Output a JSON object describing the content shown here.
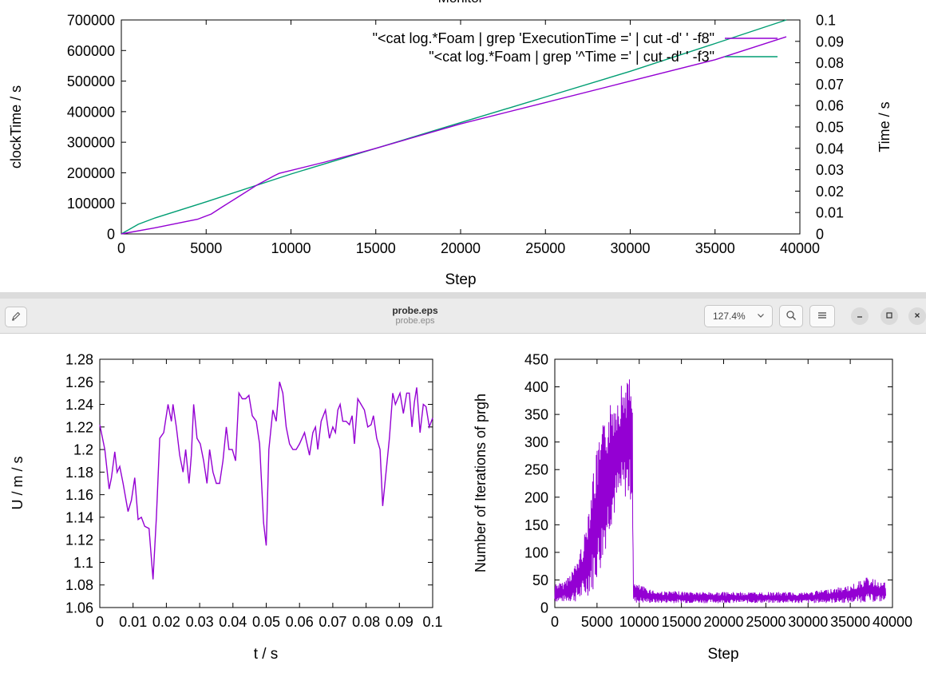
{
  "top_window": {
    "partial_title": "Monitor"
  },
  "viewer": {
    "title": "probe.eps",
    "subtitle": "probe.eps",
    "zoom": "127.4%"
  },
  "icons": {
    "edit": "pencil-icon",
    "zoom_dropdown": "chevron-down-icon",
    "search": "search-icon",
    "menu": "hamburger-menu-icon",
    "minimize": "minimize-icon",
    "maximize": "maximize-icon",
    "close": "close-icon"
  },
  "colors": {
    "purple": "#9400d3",
    "green": "#009e73"
  },
  "chart_data": [
    {
      "type": "line",
      "title": "Monitor",
      "xlabel": "Step",
      "ylabel": "clockTime / s",
      "y2label": "Time / s",
      "xlim": [
        0,
        40000
      ],
      "ylim": [
        0,
        700000
      ],
      "y2lim": [
        0,
        0.1
      ],
      "xticks": [
        "0",
        "5000",
        "10000",
        "15000",
        "20000",
        "25000",
        "30000",
        "35000",
        "40000"
      ],
      "yticks": [
        "0",
        "100000",
        "200000",
        "300000",
        "400000",
        "500000",
        "600000",
        "700000"
      ],
      "y2ticks": [
        "0",
        "0.01",
        "0.02",
        "0.03",
        "0.04",
        "0.05",
        "0.06",
        "0.07",
        "0.08",
        "0.09",
        "0.1"
      ],
      "legend_position": "top-right",
      "series": [
        {
          "name": "\"<cat log.*Foam | grep 'ExecutionTime =' | cut -d' ' -f8\"",
          "axis": "y",
          "color": "#9400d3",
          "x": [
            0,
            2000,
            4500,
            5300,
            6000,
            7000,
            8000,
            9000,
            9300,
            12000,
            15000,
            20000,
            25000,
            30000,
            35000,
            39200
          ],
          "y": [
            0,
            20000,
            48000,
            65000,
            90000,
            125000,
            160000,
            190000,
            198000,
            235000,
            280000,
            360000,
            430000,
            500000,
            570000,
            645000
          ]
        },
        {
          "name": "\"<cat log.*Foam | grep '^Time =' | cut -d' ' -f3\"",
          "axis": "y2",
          "color": "#009e73",
          "x": [
            0,
            1000,
            2000,
            5000,
            10000,
            15000,
            20000,
            25000,
            30000,
            35000,
            39200
          ],
          "y": [
            0,
            0.0045,
            0.0075,
            0.015,
            0.028,
            0.04,
            0.052,
            0.064,
            0.076,
            0.089,
            0.1
          ]
        }
      ]
    },
    {
      "type": "line",
      "xlabel": "t / s",
      "ylabel": "U / m / s",
      "xlim": [
        0,
        0.1
      ],
      "ylim": [
        1.06,
        1.28
      ],
      "xticks": [
        "0",
        "0.01",
        "0.02",
        "0.03",
        "0.04",
        "0.05",
        "0.06",
        "0.07",
        "0.08",
        "0.09",
        "0.1"
      ],
      "yticks": [
        "1.06",
        "1.08",
        "1.1",
        "1.12",
        "1.14",
        "1.16",
        "1.18",
        "1.2",
        "1.22",
        "1.24",
        "1.26",
        "1.28"
      ],
      "series": [
        {
          "name": "U",
          "color": "#9400d3",
          "x": [
            0,
            0.0015,
            0.0028,
            0.0035,
            0.0045,
            0.0052,
            0.006,
            0.007,
            0.0085,
            0.0095,
            0.0105,
            0.0115,
            0.0125,
            0.0135,
            0.0148,
            0.016,
            0.017,
            0.018,
            0.0192,
            0.0205,
            0.0215,
            0.022,
            0.023,
            0.024,
            0.025,
            0.0258,
            0.0268,
            0.0275,
            0.0282,
            0.0292,
            0.0302,
            0.0312,
            0.0322,
            0.033,
            0.034,
            0.035,
            0.036,
            0.037,
            0.038,
            0.0388,
            0.0398,
            0.0408,
            0.0418,
            0.0428,
            0.0438,
            0.0448,
            0.0458,
            0.047,
            0.048,
            0.0492,
            0.05,
            0.0508,
            0.052,
            0.053,
            0.054,
            0.055,
            0.056,
            0.057,
            0.058,
            0.059,
            0.06,
            0.0615,
            0.063,
            0.064,
            0.0648,
            0.0655,
            0.0665,
            0.0678,
            0.069,
            0.07,
            0.0708,
            0.0715,
            0.0722,
            0.073,
            0.074,
            0.075,
            0.0758,
            0.0765,
            0.0775,
            0.0785,
            0.0795,
            0.0805,
            0.0815,
            0.0822,
            0.0832,
            0.0842,
            0.085,
            0.086,
            0.087,
            0.088,
            0.0888,
            0.0895,
            0.0902,
            0.0912,
            0.0922,
            0.093,
            0.0938,
            0.0945,
            0.0952,
            0.0962,
            0.0972,
            0.098,
            0.099,
            0.1
          ],
          "y": [
            1.222,
            1.2,
            1.165,
            1.175,
            1.198,
            1.18,
            1.185,
            1.17,
            1.145,
            1.155,
            1.175,
            1.138,
            1.14,
            1.132,
            1.13,
            1.085,
            1.14,
            1.21,
            1.215,
            1.24,
            1.225,
            1.24,
            1.22,
            1.195,
            1.18,
            1.2,
            1.17,
            1.195,
            1.24,
            1.21,
            1.205,
            1.19,
            1.17,
            1.2,
            1.18,
            1.17,
            1.17,
            1.19,
            1.22,
            1.2,
            1.2,
            1.19,
            1.25,
            1.245,
            1.245,
            1.248,
            1.23,
            1.225,
            1.205,
            1.135,
            1.115,
            1.2,
            1.235,
            1.225,
            1.26,
            1.25,
            1.22,
            1.205,
            1.2,
            1.2,
            1.205,
            1.215,
            1.195,
            1.215,
            1.22,
            1.2,
            1.225,
            1.235,
            1.21,
            1.22,
            1.215,
            1.235,
            1.24,
            1.225,
            1.225,
            1.222,
            1.23,
            1.205,
            1.245,
            1.24,
            1.235,
            1.22,
            1.222,
            1.23,
            1.21,
            1.2,
            1.15,
            1.18,
            1.21,
            1.25,
            1.24,
            1.245,
            1.25,
            1.232,
            1.25,
            1.25,
            1.22,
            1.242,
            1.255,
            1.215,
            1.24,
            1.238,
            1.22,
            1.228
          ]
        }
      ]
    },
    {
      "type": "line",
      "xlabel": "Step",
      "ylabel": "Number of Iterations of prgh",
      "xlim": [
        0,
        40000
      ],
      "ylim": [
        0,
        450
      ],
      "xticks": [
        "0",
        "5000",
        "10000",
        "15000",
        "20000",
        "25000",
        "30000",
        "35000",
        "40000"
      ],
      "yticks": [
        "0",
        "50",
        "100",
        "150",
        "200",
        "250",
        "300",
        "350",
        "400",
        "450"
      ],
      "series": [
        {
          "name": "iterations",
          "color": "#9400d3",
          "envelope_x": [
            0,
            1000,
            2500,
            3500,
            4500,
            5500,
            6500,
            7500,
            8500,
            9200,
            9300,
            12000,
            20000,
            30000,
            35000,
            37000,
            39200
          ],
          "envelope_high": [
            45,
            45,
            80,
            130,
            250,
            320,
            370,
            400,
            420,
            410,
            45,
            30,
            28,
            28,
            40,
            55,
            45
          ],
          "envelope_low": [
            10,
            10,
            10,
            15,
            30,
            70,
            140,
            180,
            200,
            190,
            8,
            8,
            8,
            8,
            8,
            10,
            10
          ]
        }
      ]
    }
  ]
}
